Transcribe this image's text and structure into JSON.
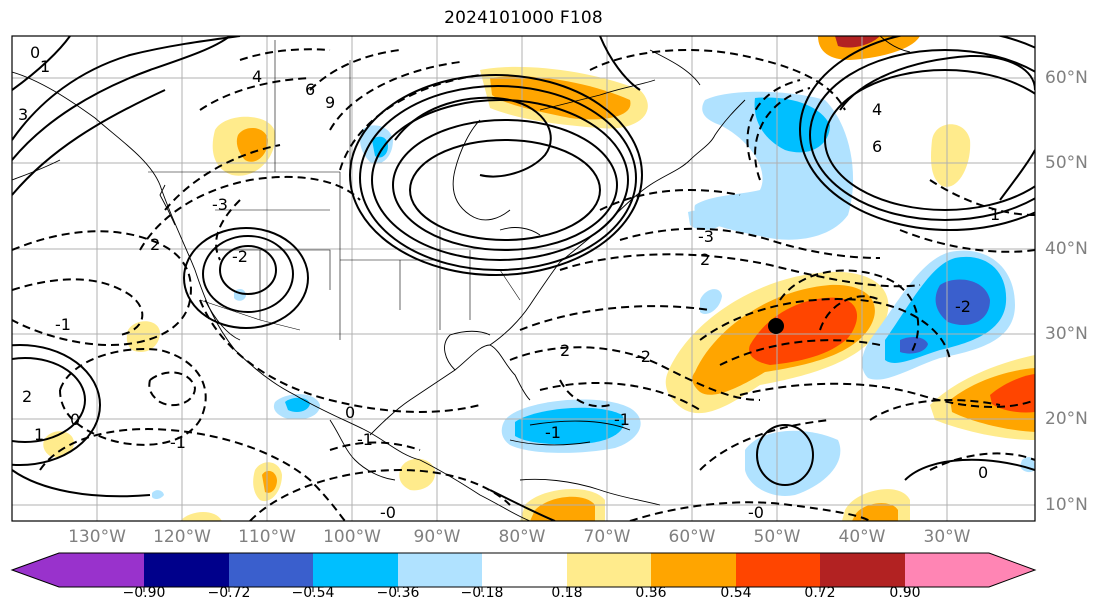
{
  "title": "2024101000 F108",
  "map": {
    "longitude_labels": [
      "130°W",
      "120°W",
      "110°W",
      "100°W",
      "90°W",
      "80°W",
      "70°W",
      "60°W",
      "50°W",
      "40°W",
      "30°W"
    ],
    "latitude_labels": [
      "60°N",
      "50°N",
      "40°N",
      "30°N",
      "20°N",
      "10°N"
    ],
    "contour_labels": [
      "0",
      "1",
      "3",
      "4",
      "6",
      "9",
      "-2",
      "2",
      "-3",
      "-1",
      "0",
      "2",
      "-3",
      "2",
      "4",
      "6",
      "1",
      "-0",
      "-1",
      "-2",
      "2",
      "-0",
      "-2",
      "0",
      "-1",
      "-1",
      "0",
      "1",
      "-1"
    ],
    "marker": {
      "type": "circle",
      "fill": "#000000"
    }
  },
  "colorbar": {
    "ticks": [
      "−0.90",
      "−0.72",
      "−0.54",
      "−0.36",
      "−0.18",
      "0.18",
      "0.36",
      "0.54",
      "0.72",
      "0.90"
    ],
    "colors": [
      "#9932cc",
      "#00008b",
      "#3a5fcd",
      "#00bfff",
      "#b0e2ff",
      "#ffffff",
      "#ffeb8c",
      "#ffa500",
      "#ff4500",
      "#b22222",
      "#ff85b4"
    ]
  }
}
